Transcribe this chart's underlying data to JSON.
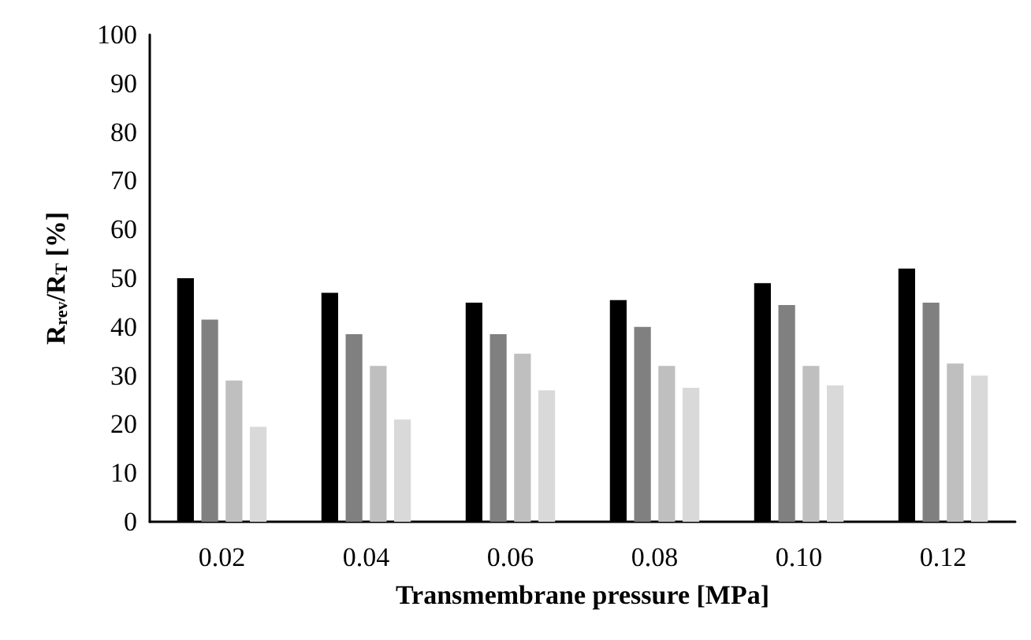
{
  "chart_data": {
    "type": "bar",
    "xlabel": "Transmembrane pressure [MPa]",
    "ylabel": "R$_{rev}$/R$_{T}$ [%]",
    "categories": [
      "0.02",
      "0.04",
      "0.06",
      "0.08",
      "0.10",
      "0.12"
    ],
    "series": [
      {
        "color": "#000000",
        "values": [
          50,
          47,
          45,
          45.5,
          49,
          52
        ]
      },
      {
        "color": "#808080",
        "values": [
          41.5,
          38.5,
          38.5,
          40,
          44.5,
          45
        ]
      },
      {
        "color": "#bfbfbf",
        "values": [
          29,
          32,
          34.5,
          32,
          32,
          32.5
        ]
      },
      {
        "color": "#d9d9d9",
        "values": [
          19.5,
          21,
          27,
          27.5,
          28,
          30
        ]
      }
    ],
    "ylim": [
      0,
      100
    ],
    "yticks": [
      0,
      10,
      20,
      30,
      40,
      50,
      60,
      70,
      80,
      90,
      100
    ],
    "grid": false
  }
}
